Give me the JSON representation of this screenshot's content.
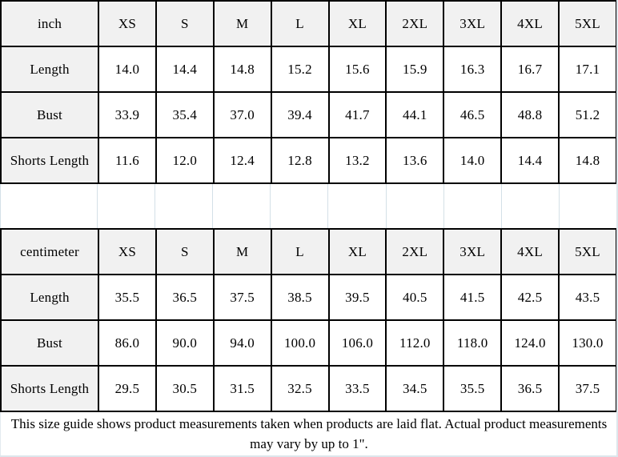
{
  "sizes": [
    "XS",
    "S",
    "M",
    "L",
    "XL",
    "2XL",
    "3XL",
    "4XL",
    "5XL"
  ],
  "tables": [
    {
      "unit": "inch",
      "rows": [
        {
          "label": "Length",
          "values": [
            "14.0",
            "14.4",
            "14.8",
            "15.2",
            "15.6",
            "15.9",
            "16.3",
            "16.7",
            "17.1"
          ]
        },
        {
          "label": "Bust",
          "values": [
            "33.9",
            "35.4",
            "37.0",
            "39.4",
            "41.7",
            "44.1",
            "46.5",
            "48.8",
            "51.2"
          ]
        },
        {
          "label": "Shorts Length",
          "values": [
            "11.6",
            "12.0",
            "12.4",
            "12.8",
            "13.2",
            "13.6",
            "14.0",
            "14.4",
            "14.8"
          ]
        }
      ]
    },
    {
      "unit": "centimeter",
      "rows": [
        {
          "label": "Length",
          "values": [
            "35.5",
            "36.5",
            "37.5",
            "38.5",
            "39.5",
            "40.5",
            "41.5",
            "42.5",
            "43.5"
          ]
        },
        {
          "label": "Bust",
          "values": [
            "86.0",
            "90.0",
            "94.0",
            "100.0",
            "106.0",
            "112.0",
            "118.0",
            "124.0",
            "130.0"
          ]
        },
        {
          "label": "Shorts Length",
          "values": [
            "29.5",
            "30.5",
            "31.5",
            "32.5",
            "33.5",
            "34.5",
            "35.5",
            "36.5",
            "37.5"
          ]
        }
      ]
    }
  ],
  "footer": {
    "note": "This size guide shows product measurements taken when products are laid flat. Actual product measurements may vary by up to 1\"."
  },
  "colors": {
    "header_bg": "#f1f1f1",
    "cell_bg": "#ffffff",
    "table_border": "#000000",
    "faint_gridline": "#d4e0e7",
    "text": "#000000"
  },
  "chart_data": [
    {
      "type": "table",
      "title": "inch",
      "columns": [
        "inch",
        "XS",
        "S",
        "M",
        "L",
        "XL",
        "2XL",
        "3XL",
        "4XL",
        "5XL"
      ],
      "rows": [
        [
          "Length",
          14.0,
          14.4,
          14.8,
          15.2,
          15.6,
          15.9,
          16.3,
          16.7,
          17.1
        ],
        [
          "Bust",
          33.9,
          35.4,
          37.0,
          39.4,
          41.7,
          44.1,
          46.5,
          48.8,
          51.2
        ],
        [
          "Shorts Length",
          11.6,
          12.0,
          12.4,
          12.8,
          13.2,
          13.6,
          14.0,
          14.4,
          14.8
        ]
      ]
    },
    {
      "type": "table",
      "title": "centimeter",
      "columns": [
        "centimeter",
        "XS",
        "S",
        "M",
        "L",
        "XL",
        "2XL",
        "3XL",
        "4XL",
        "5XL"
      ],
      "rows": [
        [
          "Length",
          35.5,
          36.5,
          37.5,
          38.5,
          39.5,
          40.5,
          41.5,
          42.5,
          43.5
        ],
        [
          "Bust",
          86.0,
          90.0,
          94.0,
          100.0,
          106.0,
          112.0,
          118.0,
          124.0,
          130.0
        ],
        [
          "Shorts Length",
          29.5,
          30.5,
          31.5,
          32.5,
          33.5,
          34.5,
          35.5,
          36.5,
          37.5
        ]
      ]
    }
  ]
}
